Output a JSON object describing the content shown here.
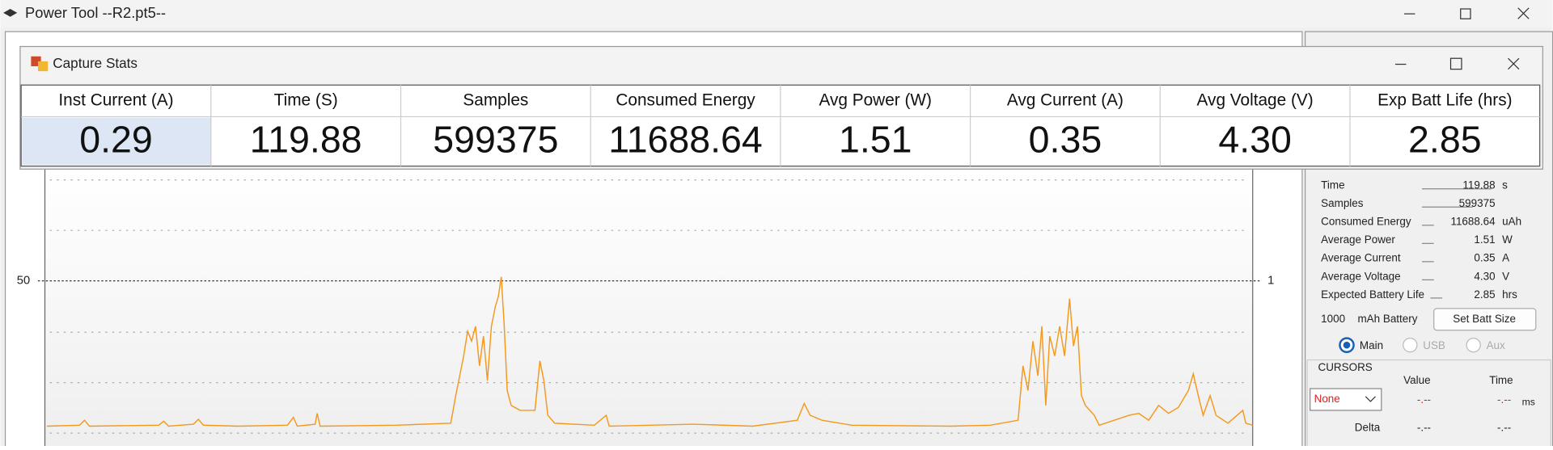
{
  "window": {
    "title": "Power Tool --R2.pt5--"
  },
  "plot": {
    "left_tick": "50",
    "right_tick": "1"
  },
  "capture_stats": {
    "title": "Capture Stats",
    "headers": [
      "Inst Current (A)",
      "Time (S)",
      "Samples",
      "Consumed Energy",
      "Avg Power (W)",
      "Avg Current (A)",
      "Avg Voltage (V)",
      "Exp Batt Life (hrs)"
    ],
    "values": [
      "0.29",
      "119.88",
      "599375",
      "11688.64",
      "1.51",
      "0.35",
      "4.30",
      "2.85"
    ]
  },
  "summary": {
    "rows": [
      {
        "label": "Time",
        "value": "119.88",
        "unit": "s"
      },
      {
        "label": "Samples",
        "value": "599375"
      },
      {
        "label": "Consumed Energy",
        "value": "11688.64",
        "unit": "uAh"
      },
      {
        "label": "Average Power",
        "value": "1.51",
        "unit": "W"
      },
      {
        "label": "Average Current",
        "value": "0.35",
        "unit": "A"
      },
      {
        "label": "Average Voltage",
        "value": "4.30",
        "unit": "V"
      },
      {
        "label": "Expected Battery Life",
        "value": "2.85",
        "unit": "hrs"
      }
    ],
    "battery": {
      "value": "1000",
      "unit": "mAh Battery",
      "button": "Set Batt Size"
    },
    "sources": [
      "Main",
      "USB",
      "Aux"
    ]
  },
  "cursors": {
    "title": "CURSORS",
    "value_header": "Value",
    "time_header": "Time",
    "select": "None",
    "value": "-.--",
    "time": "-.--",
    "unit": "ms",
    "delta_label": "Delta",
    "delta_value": "-.--",
    "delta_time": "-.--"
  }
}
